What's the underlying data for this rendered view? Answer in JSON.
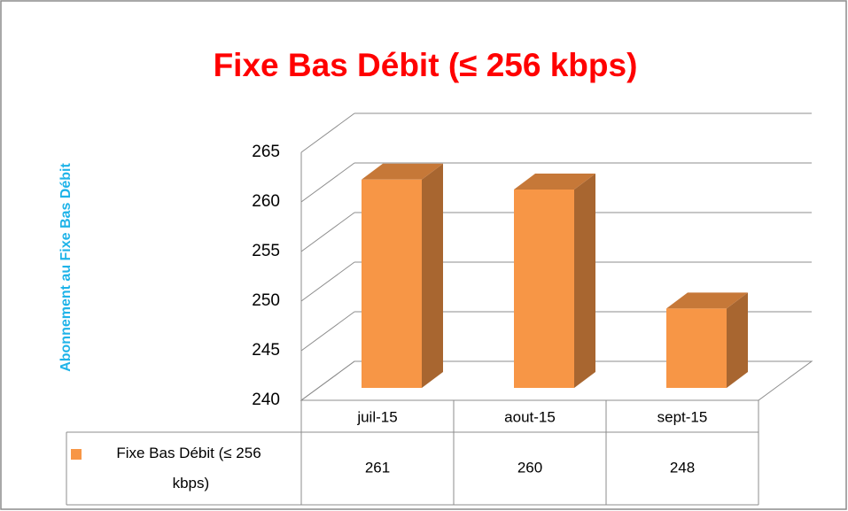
{
  "chart_data": {
    "type": "bar3d",
    "title": "Fixe Bas Débit (≤ 256 kbps)",
    "y_label": "Abonnement au Fixe Bas Débit",
    "categories": [
      "juil-15",
      "aout-15",
      "sept-15"
    ],
    "series": [
      {
        "name": "Fixe Bas Débit (≤ 256 kbps)",
        "color": "#f79646",
        "values": [
          261,
          260,
          248
        ]
      }
    ],
    "ylim": [
      240,
      265
    ],
    "yticks": [
      240,
      245,
      250,
      255,
      260,
      265
    ],
    "grid": true,
    "data_table": true
  }
}
